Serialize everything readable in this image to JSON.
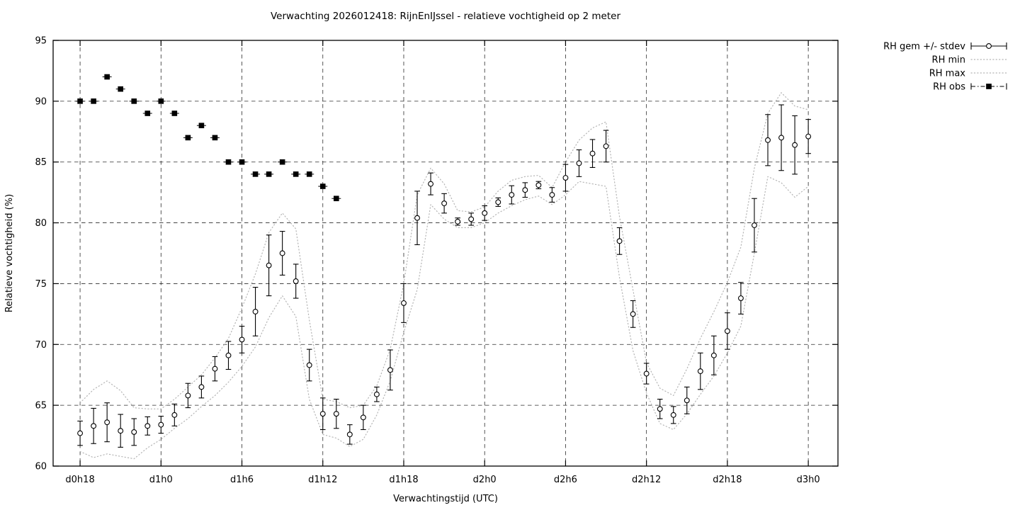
{
  "title": "Verwachting 2026012418: RijnEnIJssel - relatieve vochtigheid op 2 meter",
  "colors": {
    "foreground": "#000000",
    "envelope": "#b5b5b5",
    "grid": "#2a2a2a",
    "background": "#ffffff"
  },
  "chart_data": {
    "type": "line",
    "title": "Verwachting 2026012418: RijnEnIJssel - relatieve vochtigheid op 2 meter",
    "xlabel": "Verwachtingstijd (UTC)",
    "ylabel": "Relatieve vochtigheid (%)",
    "ylim": [
      60,
      95
    ],
    "xlim_hours": [
      16.0,
      74.2
    ],
    "grid": true,
    "legend_position": "outside-top-right",
    "y_ticks": [
      60,
      65,
      70,
      75,
      80,
      85,
      90,
      95
    ],
    "x_ticks": [
      {
        "hour": 18,
        "label": "d0h18"
      },
      {
        "hour": 24,
        "label": "d1h0"
      },
      {
        "hour": 30,
        "label": "d1h6"
      },
      {
        "hour": 36,
        "label": "d1h12"
      },
      {
        "hour": 42,
        "label": "d1h18"
      },
      {
        "hour": 48,
        "label": "d2h0"
      },
      {
        "hour": 54,
        "label": "d2h6"
      },
      {
        "hour": 60,
        "label": "d2h12"
      },
      {
        "hour": 66,
        "label": "d2h18"
      },
      {
        "hour": 72,
        "label": "d3h0"
      }
    ],
    "start_hour": 18,
    "hour_step": 1,
    "series": [
      {
        "name": "RH gem +/- stdev",
        "style": "errorbar-points",
        "marker": "open-circle",
        "color": "#000000",
        "mean": [
          62.7,
          63.3,
          63.6,
          62.9,
          62.8,
          63.3,
          63.4,
          64.2,
          65.8,
          66.5,
          68.0,
          69.1,
          70.4,
          72.7,
          76.5,
          77.5,
          75.2,
          68.3,
          64.3,
          64.3,
          62.6,
          64.0,
          65.9,
          67.9,
          73.4,
          80.4,
          83.2,
          81.6,
          80.1,
          80.3,
          80.8,
          81.7,
          82.3,
          82.7,
          83.1,
          82.3,
          83.7,
          84.9,
          85.7,
          86.3,
          78.5,
          72.5,
          67.6,
          64.7,
          64.2,
          65.4,
          67.8,
          69.1,
          71.1,
          73.8,
          79.8,
          86.8,
          87.0,
          86.4,
          87.1
        ],
        "stdev": [
          1.0,
          1.45,
          1.6,
          1.35,
          1.1,
          0.75,
          0.7,
          0.9,
          1.0,
          0.9,
          1.0,
          1.15,
          1.1,
          2.0,
          2.5,
          1.8,
          1.4,
          1.3,
          1.3,
          1.2,
          0.8,
          1.0,
          0.6,
          1.65,
          1.6,
          2.2,
          0.9,
          0.8,
          0.3,
          0.5,
          0.6,
          0.35,
          0.75,
          0.6,
          0.3,
          0.6,
          1.1,
          1.1,
          1.15,
          1.3,
          1.1,
          1.1,
          0.85,
          0.8,
          0.7,
          1.1,
          1.5,
          1.6,
          1.5,
          1.3,
          2.2,
          2.1,
          2.7,
          2.4,
          1.4
        ]
      },
      {
        "name": "RH min",
        "style": "dotted-line",
        "color": "#b5b5b5",
        "values": [
          61.2,
          60.7,
          61.0,
          60.8,
          60.6,
          61.5,
          62.2,
          63.1,
          63.9,
          64.9,
          65.8,
          66.9,
          68.2,
          69.8,
          72.2,
          74.0,
          72.3,
          65.5,
          62.6,
          62.3,
          61.6,
          62.2,
          64.2,
          67.0,
          71.0,
          74.5,
          81.5,
          80.3,
          79.6,
          79.6,
          80.0,
          80.8,
          81.4,
          81.9,
          82.2,
          81.5,
          82.3,
          83.4,
          83.2,
          83.0,
          75.5,
          69.5,
          66.0,
          63.5,
          63.0,
          64.3,
          65.9,
          67.4,
          69.3,
          71.5,
          77.5,
          83.8,
          83.3,
          82.1,
          83.0
        ]
      },
      {
        "name": "RH max",
        "style": "dotted-line",
        "color": "#b5b5b5",
        "values": [
          65.2,
          66.3,
          67.0,
          66.2,
          64.8,
          64.7,
          64.7,
          65.5,
          66.5,
          67.5,
          68.9,
          70.5,
          73.0,
          75.8,
          79.2,
          80.8,
          79.5,
          72.0,
          65.5,
          65.3,
          64.8,
          65.0,
          66.6,
          69.6,
          75.0,
          82.3,
          84.5,
          83.2,
          81.0,
          80.9,
          81.3,
          82.6,
          83.5,
          83.8,
          83.9,
          82.9,
          85.0,
          86.8,
          87.8,
          88.3,
          80.5,
          74.5,
          68.5,
          66.4,
          65.8,
          68.0,
          70.5,
          72.7,
          75.1,
          78.0,
          84.5,
          89.0,
          90.7,
          89.6,
          89.3
        ]
      },
      {
        "name": "RH obs",
        "style": "points",
        "marker": "filled-square",
        "color": "#000000",
        "values": [
          90,
          90,
          92,
          91,
          90,
          89,
          90,
          89,
          87,
          88,
          87,
          85,
          85,
          84,
          84,
          85,
          84,
          84,
          83,
          82
        ]
      }
    ]
  }
}
